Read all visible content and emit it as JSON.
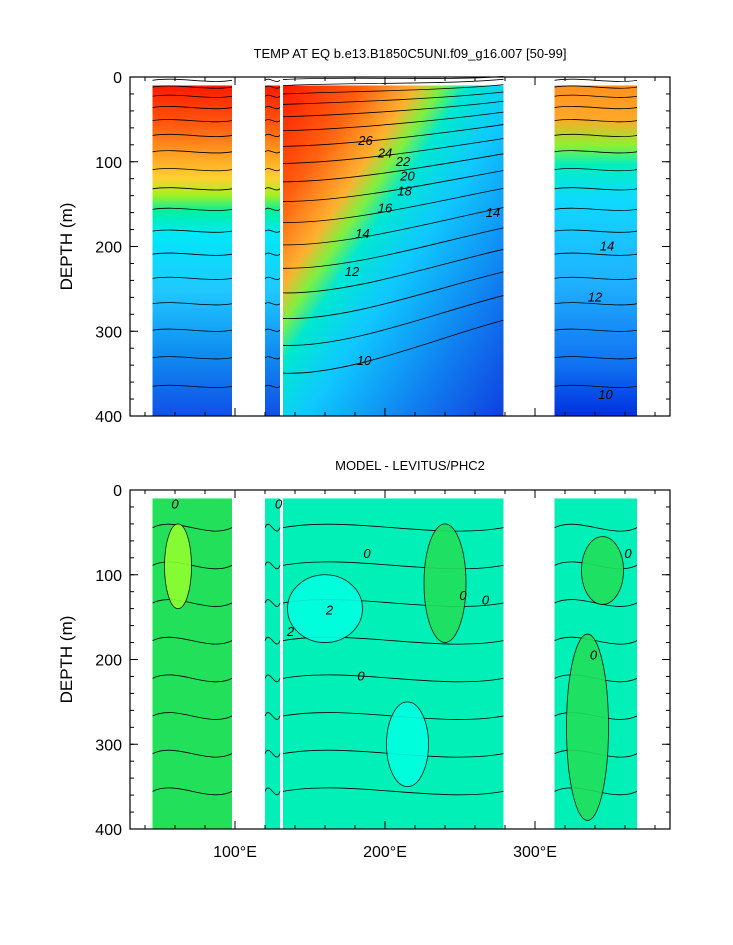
{
  "chart_data": [
    {
      "type": "heatmap",
      "title": "TEMP AT EQ b.e13.B1850C5UNI.f09_g16.007 [50-99]",
      "ylabel": "DEPTH (m)",
      "xlabel": "",
      "xlim": [
        30,
        390
      ],
      "ylim": [
        0,
        400
      ],
      "y_reversed": true,
      "y_ticks": [
        0,
        100,
        200,
        300,
        400
      ],
      "x_ticks": [],
      "contour_labels": [
        {
          "text": "26",
          "x": 187,
          "y": 80
        },
        {
          "text": "24",
          "x": 200,
          "y": 95
        },
        {
          "text": "22",
          "x": 212,
          "y": 105
        },
        {
          "text": "20",
          "x": 215,
          "y": 122
        },
        {
          "text": "18",
          "x": 213,
          "y": 140
        },
        {
          "text": "16",
          "x": 200,
          "y": 160
        },
        {
          "text": "14",
          "x": 185,
          "y": 190
        },
        {
          "text": "14",
          "x": 272,
          "y": 165
        },
        {
          "text": "12",
          "x": 178,
          "y": 235
        },
        {
          "text": "10",
          "x": 186,
          "y": 340
        },
        {
          "text": "14",
          "x": 348,
          "y": 205
        },
        {
          "text": "12",
          "x": 340,
          "y": 265
        },
        {
          "text": "10",
          "x": 347,
          "y": 380
        }
      ],
      "basins": [
        {
          "x0": 45,
          "x1": 98,
          "top": 10,
          "warm": 0.55
        },
        {
          "x0": 120,
          "x1": 130,
          "top": 10,
          "warm": 0.45
        },
        {
          "x0": 132,
          "x1": 279,
          "top": 10,
          "warm": 0.6
        },
        {
          "x0": 313,
          "x1": 368,
          "top": 10,
          "warm": 0.4
        }
      ],
      "colors": {
        "hot": "#e81e00",
        "mid": "#00f0c0",
        "cold": "#1560ff"
      }
    },
    {
      "type": "heatmap",
      "title": "MODEL - LEVITUS/PHC2",
      "ylabel": "DEPTH (m)",
      "xlabel": "",
      "xlim": [
        30,
        390
      ],
      "ylim": [
        0,
        400
      ],
      "y_reversed": true,
      "y_ticks": [
        0,
        100,
        200,
        300,
        400
      ],
      "x_ticks": [
        "100°E",
        "200°E",
        "300°E"
      ],
      "x_tick_values": [
        100,
        200,
        300
      ],
      "contour_labels": [
        {
          "text": "0",
          "x": 60,
          "y": 22
        },
        {
          "text": "0",
          "x": 129,
          "y": 22
        },
        {
          "text": "0",
          "x": 188,
          "y": 80
        },
        {
          "text": "2",
          "x": 163,
          "y": 147
        },
        {
          "text": "2",
          "x": 137,
          "y": 172
        },
        {
          "text": "0",
          "x": 252,
          "y": 130
        },
        {
          "text": "0",
          "x": 267,
          "y": 135
        },
        {
          "text": "0",
          "x": 184,
          "y": 225
        },
        {
          "text": "0",
          "x": 339,
          "y": 200
        },
        {
          "text": "0",
          "x": 362,
          "y": 80
        }
      ],
      "basins": [
        {
          "x0": 45,
          "x1": 98,
          "top": 10
        },
        {
          "x0": 120,
          "x1": 130,
          "top": 10
        },
        {
          "x0": 132,
          "x1": 279,
          "top": 10
        },
        {
          "x0": 313,
          "x1": 368,
          "top": 10
        }
      ],
      "colors": {
        "bg": "#00f0b8",
        "pos": "#22e05a",
        "pos2": "#90ff30",
        "neg": "#00ffe0"
      }
    }
  ]
}
